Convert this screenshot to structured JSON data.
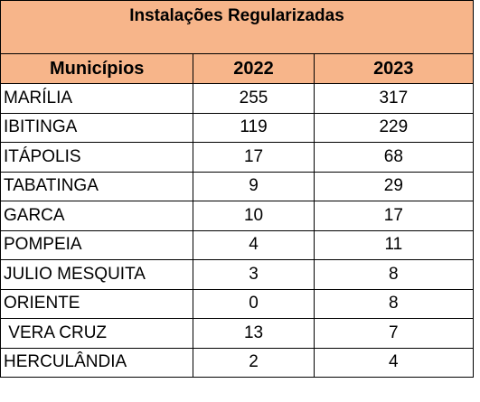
{
  "table": {
    "title": "Instalações Regularizadas",
    "headers": [
      "Municípios",
      "2022",
      "2023"
    ],
    "rows": [
      {
        "municipio": "MARÍLIA",
        "y2022": "255",
        "y2023": "317"
      },
      {
        "municipio": "IBITINGA",
        "y2022": "119",
        "y2023": "229"
      },
      {
        "municipio": "ITÁPOLIS",
        "y2022": "17",
        "y2023": "68"
      },
      {
        "municipio": "TABATINGA",
        "y2022": "9",
        "y2023": "29"
      },
      {
        "municipio": "GARCA",
        "y2022": "10",
        "y2023": "17"
      },
      {
        "municipio": "POMPEIA",
        "y2022": "4",
        "y2023": "11"
      },
      {
        "municipio": "JULIO MESQUITA",
        "y2022": "3",
        "y2023": "8"
      },
      {
        "municipio": "ORIENTE",
        "y2022": "0",
        "y2023": "8"
      },
      {
        "municipio": " VERA CRUZ",
        "y2022": "13",
        "y2023": "7"
      },
      {
        "municipio": "HERCULÂNDIA",
        "y2022": "2",
        "y2023": "4"
      }
    ]
  },
  "colors": {
    "header_fill": "#f7b58a",
    "border": "#000000",
    "background": "#ffffff"
  }
}
